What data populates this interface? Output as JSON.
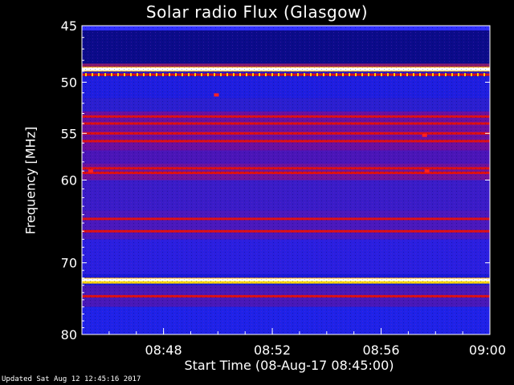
{
  "chart_data": {
    "type": "heatmap",
    "title": "Solar radio Flux (Glasgow)",
    "ylabel": "Frequency [MHz]",
    "xlabel": "Start Time (08-Aug-17 08:45:00)",
    "y_scale": "log",
    "ylim": [
      45,
      80
    ],
    "y_ticks": [
      {
        "value": 45,
        "label": "45"
      },
      {
        "value": 50,
        "label": "50"
      },
      {
        "value": 55,
        "label": "55"
      },
      {
        "value": 60,
        "label": "60"
      },
      {
        "value": 70,
        "label": "70"
      },
      {
        "value": 80,
        "label": "80"
      }
    ],
    "xlim": [
      "08:45",
      "09:00"
    ],
    "x_ticks": [
      {
        "value": "08:48",
        "label": "08:48"
      },
      {
        "value": "08:52",
        "label": "08:52"
      },
      {
        "value": "08:56",
        "label": "08:56"
      },
      {
        "value": "09:00",
        "label": "09:00"
      }
    ],
    "colormap": "blue-red-yellow-white",
    "bright_bands_mhz": [
      {
        "freq": 48.8,
        "level": "white"
      },
      {
        "freq": 49.3,
        "level": "red"
      },
      {
        "freq": 53.3,
        "level": "red"
      },
      {
        "freq": 54.0,
        "level": "red"
      },
      {
        "freq": 55.0,
        "level": "red"
      },
      {
        "freq": 55.8,
        "level": "red"
      },
      {
        "freq": 58.7,
        "level": "red"
      },
      {
        "freq": 59.2,
        "level": "red"
      },
      {
        "freq": 64.5,
        "level": "red"
      },
      {
        "freq": 66.0,
        "level": "red"
      },
      {
        "freq": 72.3,
        "level": "white"
      },
      {
        "freq": 72.6,
        "level": "yellow"
      },
      {
        "freq": 74.5,
        "level": "red"
      }
    ]
  },
  "footer": {
    "updated": "Updated Sat Aug 12 12:45:16 2017"
  }
}
